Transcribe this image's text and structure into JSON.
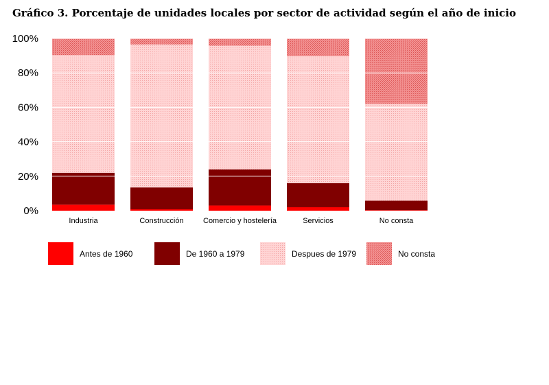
{
  "chart_data": {
    "type": "bar",
    "stacked": true,
    "percent": true,
    "title": "Gráfico 3. Porcentaje de unidades locales por sector de actividad según el año de inicio",
    "xlabel": "",
    "ylabel": "",
    "ylim": [
      0,
      100
    ],
    "yticks": [
      "0%",
      "20%",
      "40%",
      "60%",
      "80%",
      "100%"
    ],
    "grid": true,
    "legend_position": "bottom",
    "categories": [
      "Industria",
      "Construcción",
      "Comercio y hostelería",
      "Servicios",
      "No consta"
    ],
    "series": [
      {
        "name": "Antes de 1960",
        "color": "#ff0000",
        "values": [
          3.5,
          0.8,
          3.0,
          2.0,
          0.3
        ]
      },
      {
        "name": "De 1960 a 1979",
        "color": "#800000",
        "values": [
          18.5,
          12.7,
          21.0,
          14.0,
          5.5
        ]
      },
      {
        "name": "Despues de 1979",
        "color": "#ffcccc",
        "values": [
          68.3,
          83.0,
          71.8,
          73.7,
          56.2
        ]
      },
      {
        "name": "No consta",
        "color": "#f08080",
        "values": [
          9.7,
          3.5,
          4.2,
          10.3,
          38.0
        ]
      }
    ]
  }
}
